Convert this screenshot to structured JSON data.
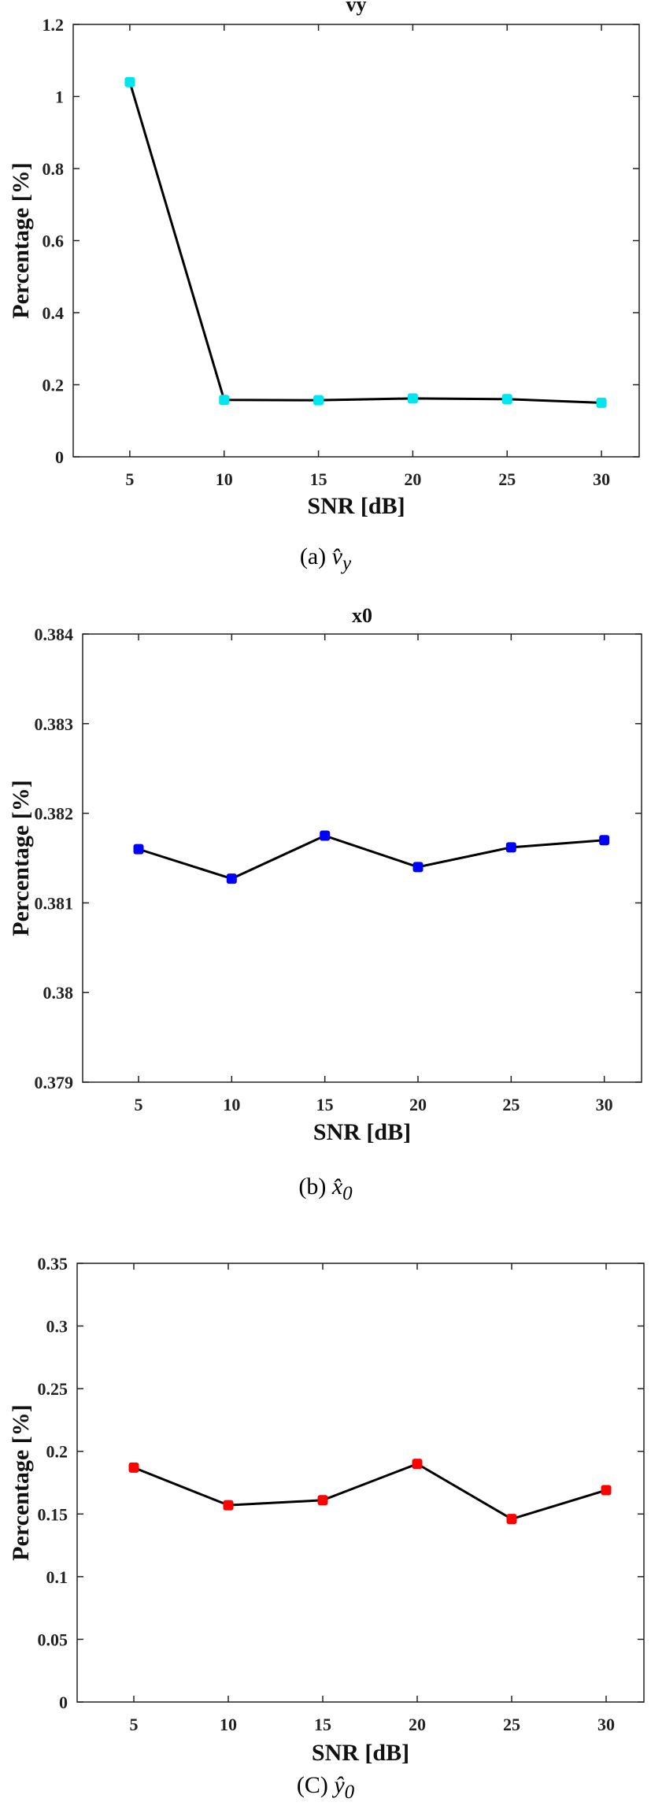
{
  "chart_data": [
    {
      "type": "line",
      "title": "vy",
      "xlabel": "SNR [dB]",
      "ylabel": "Percentage [%]",
      "x": [
        5,
        10,
        15,
        20,
        25,
        30
      ],
      "xticks": [
        "5",
        "10",
        "15",
        "20",
        "25",
        "30"
      ],
      "xlim": [
        2,
        32
      ],
      "ylim": [
        0,
        1.2
      ],
      "yticks": [
        "0",
        "0.2",
        "0.4",
        "0.6",
        "0.8",
        "1",
        "1.2"
      ],
      "series": [
        {
          "values": [
            1.04,
            0.158,
            0.157,
            0.162,
            0.16,
            0.15
          ],
          "marker_color": "#00e5ee",
          "line_color": "#000000"
        }
      ],
      "grid": false,
      "caption": {
        "label": "(a)",
        "symbol": "v̂",
        "subscript": "y"
      }
    },
    {
      "type": "line",
      "title": "x0",
      "xlabel": "SNR [dB]",
      "ylabel": "Percentage [%]",
      "x": [
        5,
        10,
        15,
        20,
        25,
        30
      ],
      "xticks": [
        "5",
        "10",
        "15",
        "20",
        "25",
        "30"
      ],
      "xlim": [
        2,
        32
      ],
      "ylim": [
        0.379,
        0.384
      ],
      "yticks": [
        "0.379",
        "0.38",
        "0.381",
        "0.382",
        "0.383",
        "0.384"
      ],
      "series": [
        {
          "values": [
            0.3816,
            0.38127,
            0.38175,
            0.3814,
            0.38162,
            0.3817
          ],
          "marker_color": "#0000ff",
          "line_color": "#000000"
        }
      ],
      "grid": false,
      "caption": {
        "label": "(b)",
        "symbol": "x̂",
        "subscript": "0"
      }
    },
    {
      "type": "line",
      "title": "",
      "xlabel": "SNR [dB]",
      "ylabel": "Percentage [%]",
      "x": [
        5,
        10,
        15,
        20,
        25,
        30
      ],
      "xticks": [
        "5",
        "10",
        "15",
        "20",
        "25",
        "30"
      ],
      "xlim": [
        2,
        32
      ],
      "ylim": [
        0,
        0.35
      ],
      "yticks": [
        "0",
        "0.05",
        "0.1",
        "0.15",
        "0.2",
        "0.25",
        "0.3",
        "0.35"
      ],
      "series": [
        {
          "values": [
            0.187,
            0.157,
            0.161,
            0.19,
            0.146,
            0.169
          ],
          "marker_color": "#ff0000",
          "line_color": "#000000"
        }
      ],
      "grid": false,
      "caption": {
        "label": "(C)",
        "symbol": "ŷ",
        "subscript": "0"
      }
    }
  ]
}
